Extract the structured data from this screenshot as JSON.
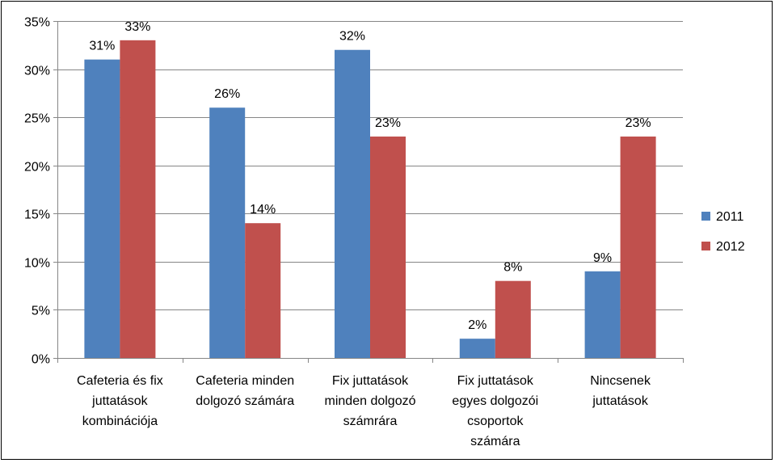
{
  "chart_data": {
    "type": "bar",
    "categories": [
      [
        "Cafeteria és fix",
        "juttatások",
        "kombinációja"
      ],
      [
        "Cafeteria minden",
        "dolgozó számára"
      ],
      [
        "Fix juttatások",
        "minden dolgozó",
        "számrára"
      ],
      [
        "Fix juttatások",
        "egyes dolgozói",
        "csoportok",
        "számára"
      ],
      [
        "Nincsenek",
        "juttatások"
      ]
    ],
    "series": [
      {
        "name": "2011",
        "color": "#4F81BD",
        "values": [
          31,
          26,
          32,
          2,
          9
        ],
        "labels": [
          "31%",
          "26%",
          "32%",
          "2%",
          "9%"
        ]
      },
      {
        "name": "2012",
        "color": "#C0504D",
        "values": [
          33,
          14,
          23,
          8,
          23
        ],
        "labels": [
          "33%",
          "14%",
          "23%",
          "8%",
          "23%"
        ]
      }
    ],
    "ylim": [
      0,
      35
    ],
    "yticks": [
      0,
      5,
      10,
      15,
      20,
      25,
      30,
      35
    ],
    "ytick_labels": [
      "0%",
      "5%",
      "10%",
      "15%",
      "20%",
      "25%",
      "30%",
      "35%"
    ],
    "grid": true,
    "legend_position": "right"
  }
}
